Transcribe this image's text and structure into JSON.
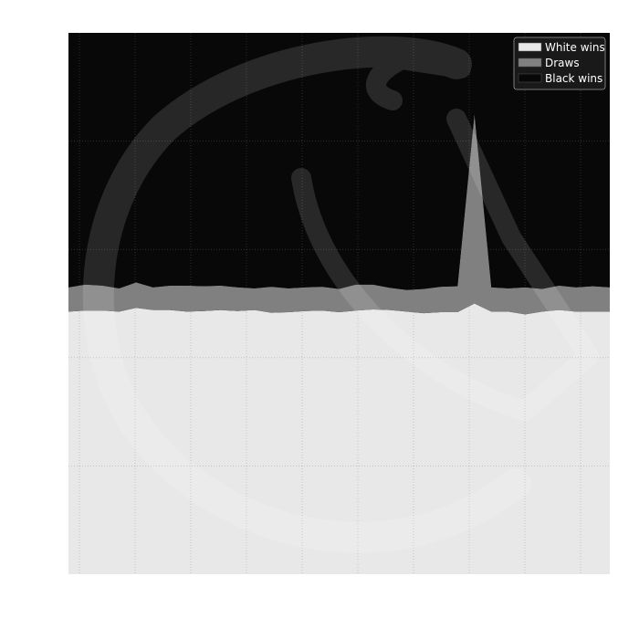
{
  "chart_data": {
    "type": "area",
    "stacked": true,
    "normalized": true,
    "ylim": [
      0,
      1
    ],
    "grid": true,
    "legend_position": "top-right",
    "x_points": 33,
    "series": [
      {
        "name": "White wins",
        "color": "#e8e8e8",
        "values": [
          0.485,
          0.487,
          0.487,
          0.485,
          0.492,
          0.488,
          0.488,
          0.485,
          0.486,
          0.488,
          0.486,
          0.488,
          0.483,
          0.484,
          0.486,
          0.487,
          0.484,
          0.487,
          0.489,
          0.488,
          0.485,
          0.482,
          0.484,
          0.484,
          0.5,
          0.485,
          0.485,
          0.48,
          0.485,
          0.488,
          0.485,
          0.485,
          0.485
        ]
      },
      {
        "name": "Draws",
        "color": "#808080",
        "values": [
          0.045,
          0.048,
          0.046,
          0.043,
          0.047,
          0.042,
          0.045,
          0.048,
          0.046,
          0.045,
          0.044,
          0.04,
          0.048,
          0.044,
          0.044,
          0.044,
          0.043,
          0.048,
          0.046,
          0.041,
          0.04,
          0.045,
          0.047,
          0.048,
          0.35,
          0.045,
          0.043,
          0.05,
          0.042,
          0.045,
          0.045,
          0.047,
          0.045
        ]
      },
      {
        "name": "Black wins",
        "color": "#080808",
        "values": [
          0.47,
          0.465,
          0.467,
          0.472,
          0.461,
          0.47,
          0.467,
          0.467,
          0.468,
          0.467,
          0.47,
          0.472,
          0.469,
          0.472,
          0.47,
          0.469,
          0.473,
          0.465,
          0.465,
          0.471,
          0.475,
          0.473,
          0.469,
          0.468,
          0.15,
          0.47,
          0.472,
          0.47,
          0.473,
          0.467,
          0.47,
          0.468,
          0.47
        ]
      }
    ]
  }
}
